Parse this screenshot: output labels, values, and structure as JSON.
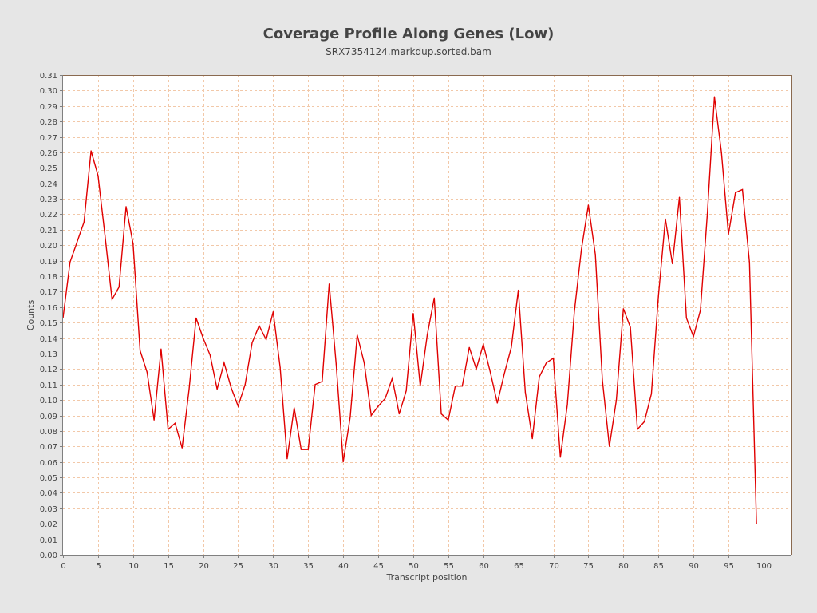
{
  "chart_data": {
    "type": "line",
    "title": "Coverage Profile Along Genes (Low)",
    "subtitle": "SRX7354124.markdup.sorted.bam",
    "xlabel": "Transcript position",
    "ylabel": "Counts",
    "xlim": [
      0,
      104
    ],
    "ylim": [
      0,
      0.31
    ],
    "xticks": [
      0,
      5,
      10,
      15,
      20,
      25,
      30,
      35,
      40,
      45,
      50,
      55,
      60,
      65,
      70,
      75,
      80,
      85,
      90,
      95,
      100
    ],
    "yticks": [
      "0.00",
      "0.01",
      "0.02",
      "0.03",
      "0.04",
      "0.05",
      "0.06",
      "0.07",
      "0.08",
      "0.09",
      "0.10",
      "0.11",
      "0.12",
      "0.13",
      "0.14",
      "0.15",
      "0.16",
      "0.17",
      "0.18",
      "0.19",
      "0.20",
      "0.21",
      "0.22",
      "0.23",
      "0.24",
      "0.25",
      "0.26",
      "0.27",
      "0.28",
      "0.29",
      "0.30",
      "0.31"
    ],
    "grid": true,
    "colors": {
      "line": "#e00000",
      "grid": "#f2c8a8",
      "plot_bg": "#ffffff",
      "page_bg": "#e6e6e6",
      "axis": "#808080",
      "frame": "#8a6a50"
    },
    "series": [
      {
        "x": [
          0,
          1,
          2,
          3,
          4,
          5,
          6,
          7,
          8,
          9,
          10,
          11,
          12,
          13,
          14,
          15,
          16,
          17,
          18,
          19,
          20,
          21,
          22,
          23,
          24,
          25,
          26,
          27,
          28,
          29,
          30,
          31,
          32,
          33,
          34,
          35,
          36,
          37,
          38,
          39,
          40,
          41,
          42,
          43,
          44,
          45,
          46,
          47,
          48,
          49,
          50,
          51,
          52,
          53,
          54,
          55,
          56,
          57,
          58,
          59,
          60,
          61,
          62,
          63,
          64,
          65,
          66,
          67,
          68,
          69,
          70,
          71,
          72,
          73,
          74,
          75,
          76,
          77,
          78,
          79,
          80,
          81,
          82,
          83,
          84,
          85,
          86,
          87,
          88,
          89,
          90,
          91,
          92,
          93,
          94,
          95,
          96,
          97,
          98,
          99
        ],
        "values": [
          0.153,
          0.189,
          0.202,
          0.215,
          0.261,
          0.245,
          0.206,
          0.165,
          0.173,
          0.225,
          0.201,
          0.132,
          0.118,
          0.087,
          0.133,
          0.081,
          0.085,
          0.069,
          0.107,
          0.153,
          0.14,
          0.129,
          0.107,
          0.124,
          0.108,
          0.096,
          0.11,
          0.137,
          0.148,
          0.139,
          0.157,
          0.121,
          0.062,
          0.095,
          0.068,
          0.068,
          0.11,
          0.112,
          0.175,
          0.123,
          0.06,
          0.089,
          0.142,
          0.124,
          0.09,
          0.096,
          0.101,
          0.114,
          0.091,
          0.106,
          0.156,
          0.109,
          0.142,
          0.166,
          0.091,
          0.087,
          0.109,
          0.109,
          0.134,
          0.12,
          0.136,
          0.118,
          0.098,
          0.117,
          0.134,
          0.171,
          0.105,
          0.075,
          0.115,
          0.124,
          0.127,
          0.063,
          0.097,
          0.157,
          0.197,
          0.226,
          0.194,
          0.113,
          0.07,
          0.1,
          0.159,
          0.147,
          0.081,
          0.086,
          0.104,
          0.167,
          0.217,
          0.188,
          0.231,
          0.153,
          0.141,
          0.158,
          0.221,
          0.296,
          0.26,
          0.207,
          0.234,
          0.236,
          0.189,
          0.02
        ]
      }
    ]
  }
}
